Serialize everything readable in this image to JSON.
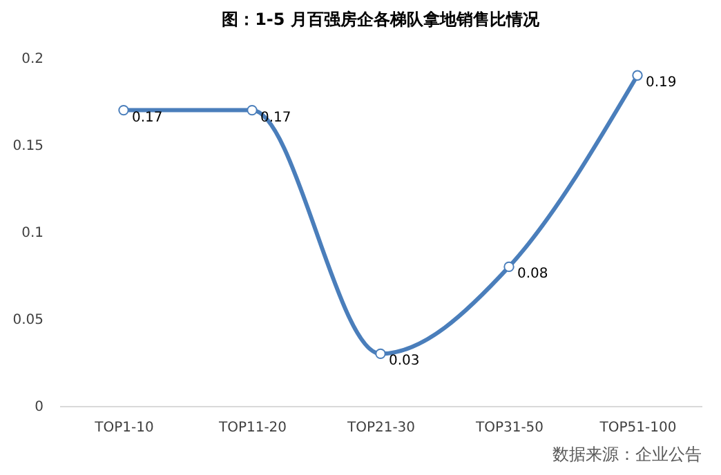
{
  "chart_data": {
    "type": "line",
    "title": "图：1-5 月百强房企各梯队拿地销售比情况",
    "categories": [
      "TOP1-10",
      "TOP11-20",
      "TOP21-30",
      "TOP31-50",
      "TOP51-100"
    ],
    "series": [
      {
        "color": "#4a7ebb",
        "values": [
          0.17,
          0.17,
          0.03,
          0.08,
          0.19
        ]
      }
    ],
    "ylim": [
      0,
      0.2
    ],
    "yticks": [
      0,
      0.05,
      0.1,
      0.15,
      0.2
    ],
    "grid": false,
    "legend": false,
    "marker": "circle",
    "line_style": "solid",
    "data_labels": true,
    "annotations": [
      "数据来源：企业公告"
    ]
  }
}
